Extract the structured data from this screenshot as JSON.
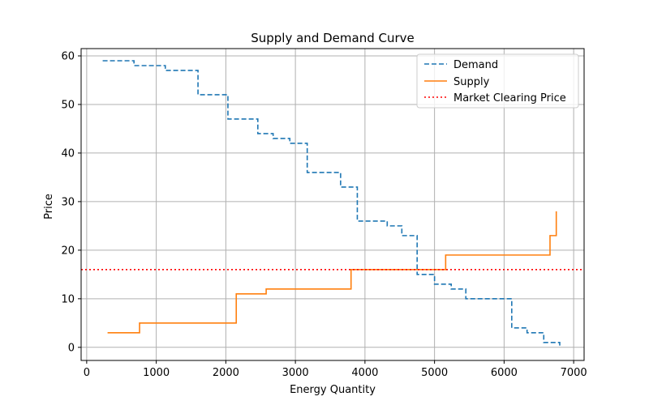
{
  "chart_data": {
    "type": "line",
    "title": "Supply and Demand Curve",
    "xlabel": "Energy Quantity",
    "ylabel": "Price",
    "xlim": [
      -80,
      7150
    ],
    "ylim": [
      -2.7,
      61.5
    ],
    "xticks": [
      0,
      1000,
      2000,
      3000,
      4000,
      5000,
      6000,
      7000
    ],
    "yticks": [
      0,
      10,
      20,
      30,
      40,
      50,
      60
    ],
    "grid": true,
    "legend_position": "top-right",
    "series": [
      {
        "name": "Demand",
        "style": "dashed",
        "color": "#1f77b4",
        "step": "post",
        "x": [
          230,
          680,
          1130,
          1600,
          2030,
          2460,
          2680,
          2920,
          3170,
          3650,
          3890,
          4320,
          4530,
          4750,
          5000,
          5240,
          5450,
          6110,
          6330,
          6570,
          6800
        ],
        "y": [
          59,
          58,
          57,
          52,
          47,
          44,
          43,
          42,
          36,
          33,
          26,
          25,
          23,
          15,
          13,
          12,
          10,
          4,
          3,
          1,
          0
        ]
      },
      {
        "name": "Supply",
        "style": "solid",
        "color": "#ff7f0e",
        "step": "post",
        "x": [
          300,
          760,
          2150,
          2580,
          3800,
          5160,
          6660,
          6750
        ],
        "y": [
          3,
          5,
          11,
          12,
          16,
          19,
          23,
          28
        ]
      },
      {
        "name": "Market Clearing Price",
        "style": "dotted",
        "color": "#ff0000",
        "type": "hline",
        "y": 16
      }
    ]
  }
}
